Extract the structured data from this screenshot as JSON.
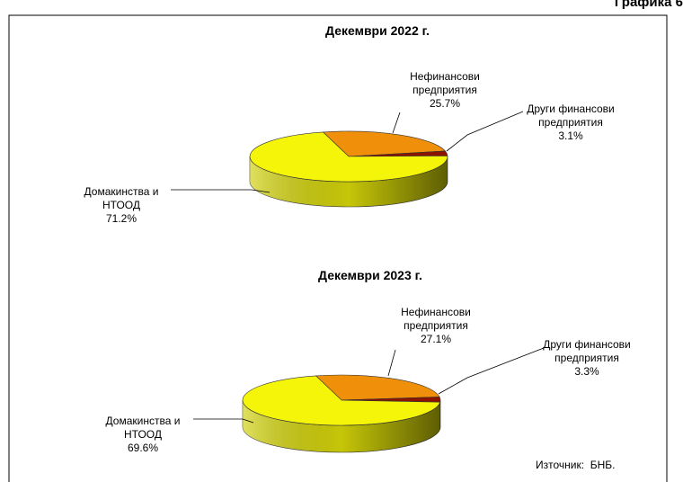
{
  "header": "Графика 6",
  "source": "Източник:  БНБ.",
  "chart_data": [
    {
      "type": "pie",
      "title": "Декември 2022 г.",
      "categories": [
        "Нефинансови предприятия",
        "Други финансови предприятия",
        "Домакинства и НТООД"
      ],
      "values": [
        25.7,
        3.1,
        71.2
      ],
      "value_labels": [
        "25.7%",
        "3.1%",
        "71.2%"
      ],
      "colors": [
        "#f0900a",
        "#8b1400",
        "#f5f50a"
      ]
    },
    {
      "type": "pie",
      "title": "Декември 2023 г.",
      "categories": [
        "Нефинансови предприятия",
        "Други финансови предприятия",
        "Домакинства и НТООД"
      ],
      "values": [
        27.1,
        3.3,
        69.6
      ],
      "value_labels": [
        "27.1%",
        "3.3%",
        "69.6%"
      ],
      "colors": [
        "#f0900a",
        "#8b1400",
        "#f5f50a"
      ]
    }
  ]
}
